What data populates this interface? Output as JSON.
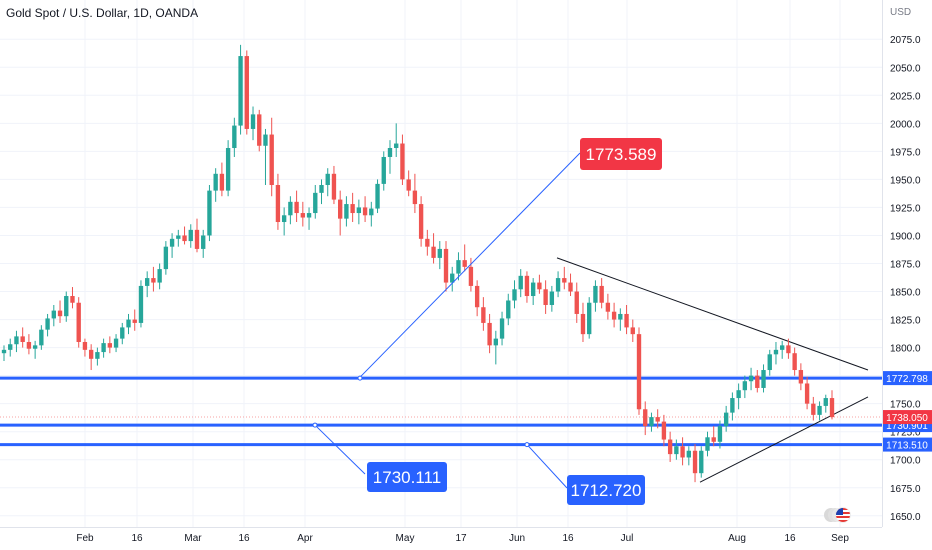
{
  "header": {
    "title": "Gold Spot / U.S. Dollar, 1D, OANDA",
    "currency": "USD"
  },
  "colors": {
    "up": "#26a69a",
    "down": "#ef5350",
    "level_line": "#2962ff",
    "trend_line": "#131722",
    "callout_blue": "#2962ff",
    "callout_red": "#f23645",
    "grid": "#f0f3fa",
    "axis_text": "#131722"
  },
  "chart_data": {
    "type": "candlestick",
    "title": "Gold Spot / U.S. Dollar, 1D, OANDA",
    "yunit": "USD",
    "ylim": [
      1640,
      2110
    ],
    "y_ticks": [
      1650,
      1675,
      1700,
      1725,
      1750,
      1775,
      1800,
      1825,
      1850,
      1875,
      1900,
      1925,
      1950,
      1975,
      2000,
      2025,
      2050,
      2075
    ],
    "x_ticks": [
      "Feb",
      "16",
      "Mar",
      "16",
      "Apr",
      "May",
      "17",
      "Jun",
      "16",
      "Jul",
      "Aug",
      "16",
      "Sep"
    ],
    "grid": true,
    "horizontal_levels": [
      {
        "label": "1772.798",
        "price": 1772.798,
        "tag_color": "#2962ff"
      },
      {
        "label": "1730.901",
        "price": 1730.901,
        "tag_color": "#2962ff"
      },
      {
        "label": "1713.510",
        "price": 1713.51,
        "tag_color": "#2962ff"
      }
    ],
    "last_price": {
      "label": "1738.050",
      "price": 1738.05,
      "tag_color": "#f23645"
    },
    "callouts": [
      {
        "label": "1773.589",
        "price": 1773.589,
        "color": "#f23645"
      },
      {
        "label": "1730.111",
        "price": 1730.111,
        "color": "#2962ff"
      },
      {
        "label": "1712.720",
        "price": 1712.72,
        "color": "#2962ff"
      }
    ],
    "candles": [
      [
        1795,
        1802,
        1788,
        1798
      ],
      [
        1798,
        1808,
        1792,
        1803
      ],
      [
        1803,
        1815,
        1796,
        1810
      ],
      [
        1810,
        1818,
        1800,
        1805
      ],
      [
        1805,
        1812,
        1794,
        1799
      ],
      [
        1799,
        1806,
        1790,
        1802
      ],
      [
        1802,
        1820,
        1798,
        1816
      ],
      [
        1816,
        1830,
        1810,
        1826
      ],
      [
        1826,
        1838,
        1819,
        1833
      ],
      [
        1833,
        1842,
        1822,
        1828
      ],
      [
        1828,
        1850,
        1823,
        1846
      ],
      [
        1846,
        1854,
        1835,
        1840
      ],
      [
        1840,
        1845,
        1800,
        1805
      ],
      [
        1805,
        1808,
        1792,
        1798
      ],
      [
        1798,
        1803,
        1780,
        1790
      ],
      [
        1790,
        1800,
        1784,
        1796
      ],
      [
        1796,
        1808,
        1791,
        1804
      ],
      [
        1804,
        1810,
        1795,
        1800
      ],
      [
        1800,
        1812,
        1796,
        1808
      ],
      [
        1808,
        1822,
        1803,
        1818
      ],
      [
        1818,
        1830,
        1812,
        1825
      ],
      [
        1825,
        1834,
        1815,
        1822
      ],
      [
        1822,
        1860,
        1818,
        1855
      ],
      [
        1855,
        1868,
        1845,
        1862
      ],
      [
        1862,
        1872,
        1850,
        1858
      ],
      [
        1858,
        1875,
        1852,
        1870
      ],
      [
        1870,
        1895,
        1865,
        1890
      ],
      [
        1890,
        1902,
        1880,
        1897
      ],
      [
        1897,
        1905,
        1890,
        1900
      ],
      [
        1900,
        1908,
        1892,
        1895
      ],
      [
        1895,
        1910,
        1889,
        1905
      ],
      [
        1905,
        1915,
        1885,
        1888
      ],
      [
        1888,
        1905,
        1880,
        1900
      ],
      [
        1900,
        1945,
        1895,
        1940
      ],
      [
        1940,
        1960,
        1930,
        1955
      ],
      [
        1955,
        1965,
        1935,
        1940
      ],
      [
        1940,
        1985,
        1935,
        1978
      ],
      [
        1978,
        2005,
        1970,
        1998
      ],
      [
        1998,
        2070,
        1990,
        2060
      ],
      [
        2060,
        2065,
        1990,
        1995
      ],
      [
        1995,
        2015,
        1985,
        2008
      ],
      [
        2008,
        2012,
        1975,
        1980
      ],
      [
        1980,
        1995,
        1945,
        1990
      ],
      [
        1990,
        2005,
        1935,
        1945
      ],
      [
        1945,
        1955,
        1905,
        1912
      ],
      [
        1912,
        1925,
        1900,
        1918
      ],
      [
        1918,
        1935,
        1910,
        1930
      ],
      [
        1930,
        1940,
        1912,
        1920
      ],
      [
        1920,
        1930,
        1908,
        1916
      ],
      [
        1916,
        1925,
        1905,
        1920
      ],
      [
        1920,
        1945,
        1915,
        1938
      ],
      [
        1938,
        1950,
        1928,
        1945
      ],
      [
        1945,
        1960,
        1935,
        1955
      ],
      [
        1955,
        1962,
        1928,
        1932
      ],
      [
        1932,
        1940,
        1900,
        1915
      ],
      [
        1915,
        1935,
        1908,
        1928
      ],
      [
        1928,
        1938,
        1912,
        1920
      ],
      [
        1920,
        1932,
        1910,
        1925
      ],
      [
        1925,
        1935,
        1912,
        1918
      ],
      [
        1918,
        1930,
        1908,
        1924
      ],
      [
        1924,
        1950,
        1920,
        1946
      ],
      [
        1946,
        1975,
        1940,
        1970
      ],
      [
        1970,
        1985,
        1955,
        1978
      ],
      [
        1978,
        2000,
        1970,
        1982
      ],
      [
        1982,
        1990,
        1945,
        1950
      ],
      [
        1950,
        1958,
        1935,
        1940
      ],
      [
        1940,
        1955,
        1920,
        1928
      ],
      [
        1928,
        1935,
        1890,
        1897
      ],
      [
        1897,
        1905,
        1882,
        1890
      ],
      [
        1890,
        1902,
        1875,
        1880
      ],
      [
        1880,
        1895,
        1870,
        1888
      ],
      [
        1888,
        1895,
        1850,
        1858
      ],
      [
        1858,
        1872,
        1850,
        1866
      ],
      [
        1866,
        1885,
        1860,
        1878
      ],
      [
        1878,
        1892,
        1868,
        1872
      ],
      [
        1872,
        1880,
        1850,
        1855
      ],
      [
        1855,
        1860,
        1828,
        1836
      ],
      [
        1836,
        1845,
        1815,
        1822
      ],
      [
        1822,
        1830,
        1795,
        1802
      ],
      [
        1802,
        1815,
        1785,
        1808
      ],
      [
        1808,
        1832,
        1802,
        1826
      ],
      [
        1826,
        1848,
        1820,
        1842
      ],
      [
        1842,
        1860,
        1835,
        1852
      ],
      [
        1852,
        1870,
        1845,
        1864
      ],
      [
        1864,
        1868,
        1840,
        1846
      ],
      [
        1846,
        1862,
        1838,
        1858
      ],
      [
        1858,
        1865,
        1848,
        1852
      ],
      [
        1852,
        1860,
        1830,
        1838
      ],
      [
        1838,
        1855,
        1832,
        1850
      ],
      [
        1850,
        1868,
        1845,
        1862
      ],
      [
        1862,
        1872,
        1852,
        1858
      ],
      [
        1858,
        1866,
        1846,
        1850
      ],
      [
        1850,
        1858,
        1822,
        1830
      ],
      [
        1830,
        1840,
        1805,
        1812
      ],
      [
        1812,
        1845,
        1808,
        1840
      ],
      [
        1840,
        1860,
        1832,
        1855
      ],
      [
        1855,
        1862,
        1835,
        1840
      ],
      [
        1840,
        1848,
        1825,
        1832
      ],
      [
        1832,
        1840,
        1818,
        1825
      ],
      [
        1825,
        1835,
        1815,
        1830
      ],
      [
        1830,
        1838,
        1812,
        1818
      ],
      [
        1818,
        1825,
        1805,
        1812
      ],
      [
        1812,
        1818,
        1740,
        1745
      ],
      [
        1745,
        1752,
        1722,
        1730
      ],
      [
        1730,
        1742,
        1725,
        1738
      ],
      [
        1738,
        1745,
        1728,
        1734
      ],
      [
        1734,
        1740,
        1712,
        1718
      ],
      [
        1718,
        1725,
        1698,
        1705
      ],
      [
        1705,
        1718,
        1700,
        1712
      ],
      [
        1712,
        1720,
        1695,
        1702
      ],
      [
        1702,
        1712,
        1695,
        1708
      ],
      [
        1708,
        1714,
        1680,
        1688
      ],
      [
        1688,
        1712,
        1684,
        1708
      ],
      [
        1708,
        1725,
        1703,
        1720
      ],
      [
        1720,
        1730,
        1712,
        1716
      ],
      [
        1716,
        1735,
        1710,
        1730
      ],
      [
        1730,
        1748,
        1725,
        1742
      ],
      [
        1742,
        1760,
        1735,
        1755
      ],
      [
        1755,
        1768,
        1745,
        1762
      ],
      [
        1762,
        1775,
        1755,
        1770
      ],
      [
        1770,
        1782,
        1762,
        1775
      ],
      [
        1775,
        1780,
        1760,
        1764
      ],
      [
        1764,
        1785,
        1760,
        1780
      ],
      [
        1780,
        1798,
        1775,
        1794
      ],
      [
        1794,
        1805,
        1785,
        1798
      ],
      [
        1798,
        1806,
        1790,
        1802
      ],
      [
        1802,
        1808,
        1790,
        1795
      ],
      [
        1795,
        1800,
        1775,
        1780
      ],
      [
        1780,
        1786,
        1762,
        1768
      ],
      [
        1768,
        1774,
        1745,
        1750
      ],
      [
        1750,
        1756,
        1735,
        1740
      ],
      [
        1740,
        1752,
        1735,
        1748
      ],
      [
        1748,
        1758,
        1742,
        1755
      ],
      [
        1755,
        1762,
        1736,
        1738
      ]
    ]
  }
}
